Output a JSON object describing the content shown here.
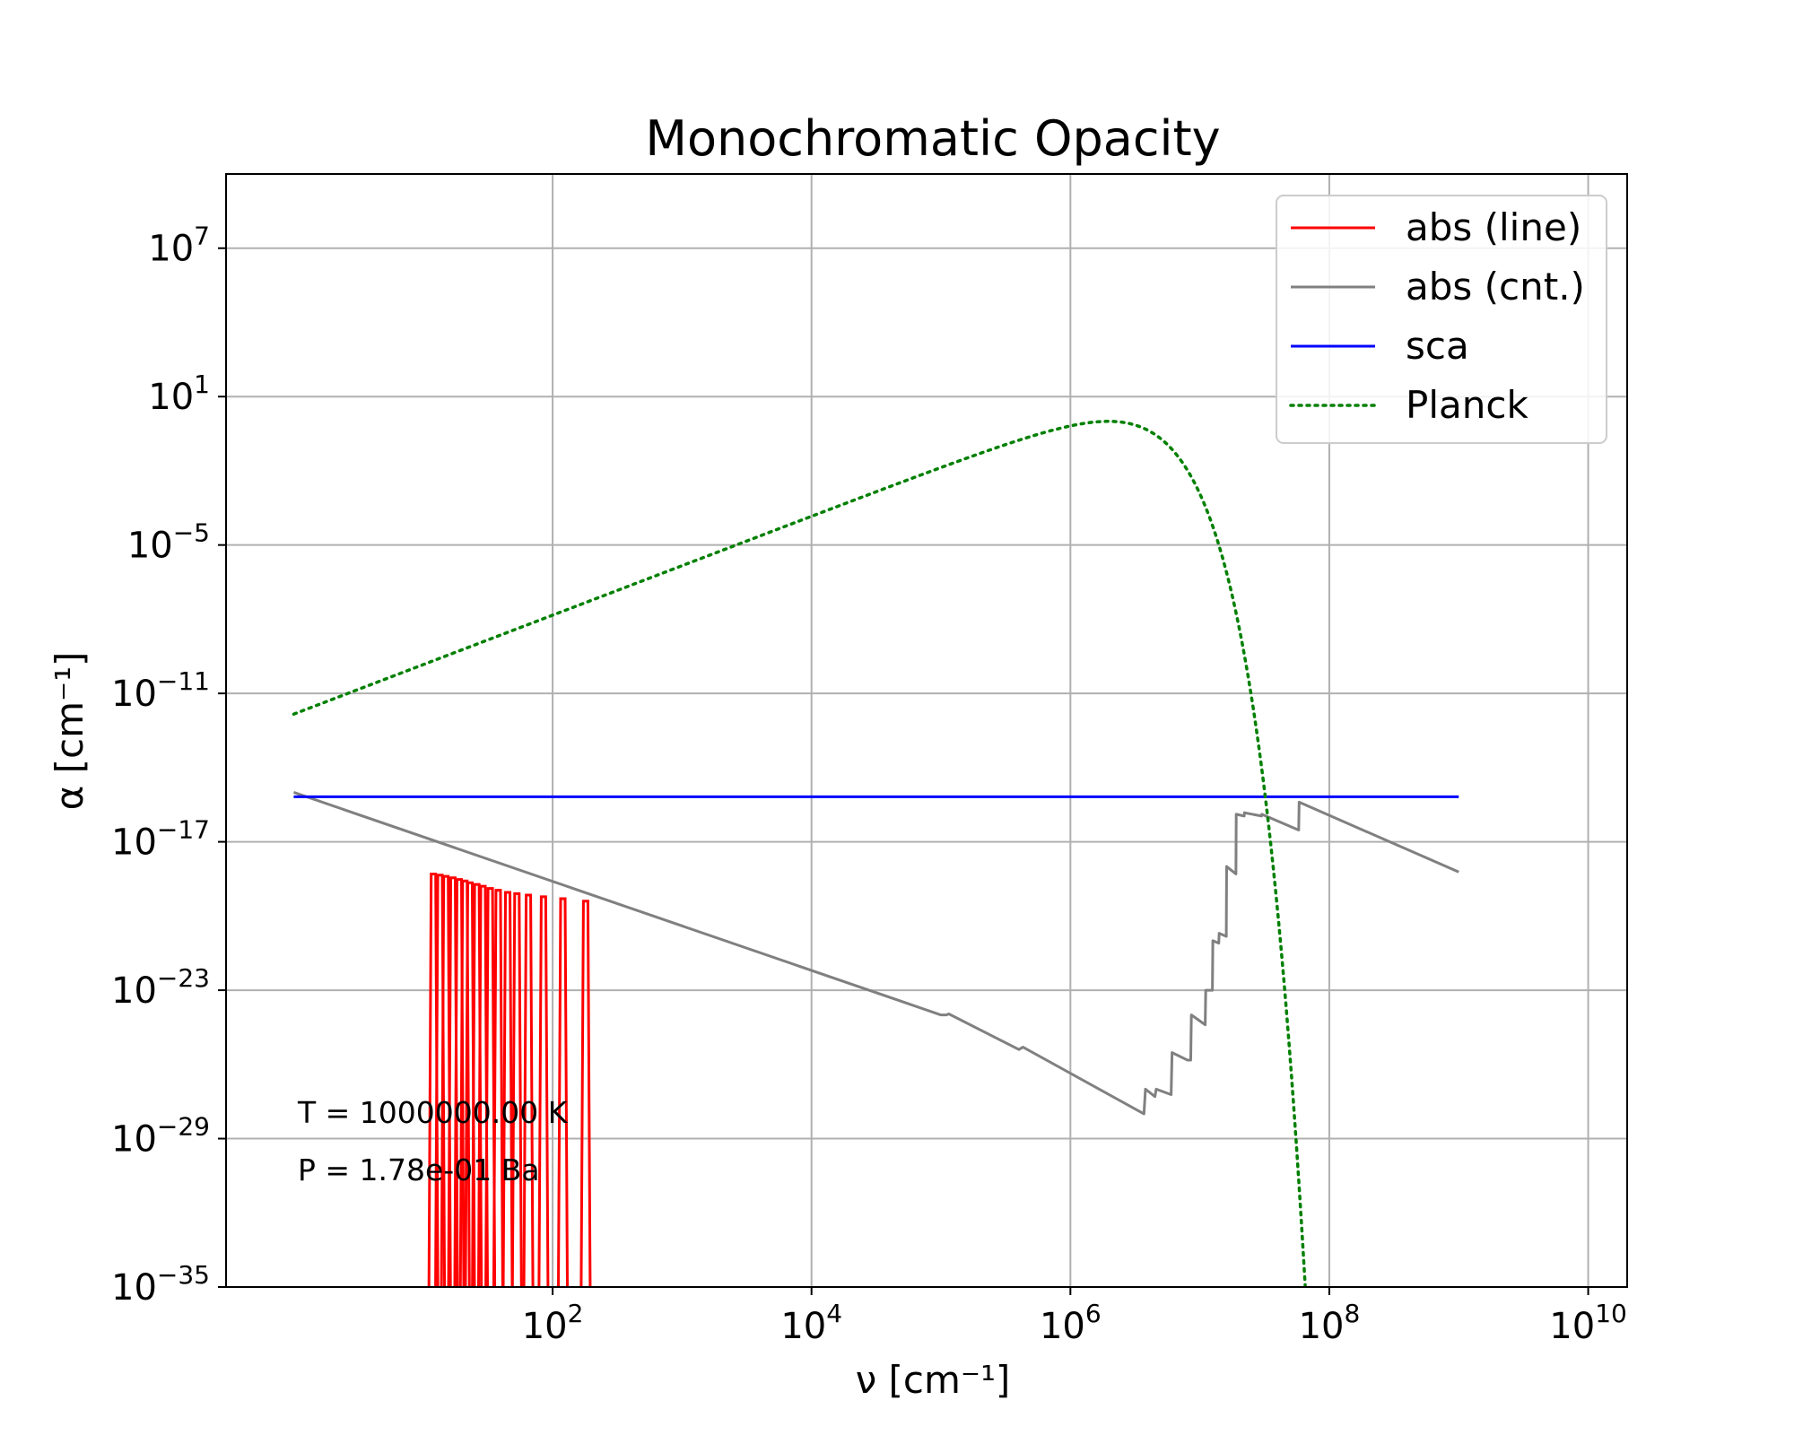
{
  "chart_data": {
    "type": "line",
    "title": "Monochromatic Opacity",
    "xlabel": "ν [cm⁻¹]",
    "ylabel": "α [cm⁻¹]",
    "xscale": "log",
    "yscale": "log",
    "xlim": [
      0.3,
      20000000000.0
    ],
    "ylim": [
      1e-35,
      10000000000.0
    ],
    "x_ticks": [
      {
        "value": 100,
        "label": "10",
        "exp": "2"
      },
      {
        "value": 10000,
        "label": "10",
        "exp": "4"
      },
      {
        "value": 1000000,
        "label": "10",
        "exp": "6"
      },
      {
        "value": 100000000,
        "label": "10",
        "exp": "8"
      },
      {
        "value": 10000000000,
        "label": "10",
        "exp": "10"
      }
    ],
    "y_ticks": [
      {
        "value": 1e-35,
        "label": "10",
        "exp": "−35"
      },
      {
        "value": 1e-29,
        "label": "10",
        "exp": "−29"
      },
      {
        "value": 1e-23,
        "label": "10",
        "exp": "−23"
      },
      {
        "value": 1e-17,
        "label": "10",
        "exp": "−17"
      },
      {
        "value": 1e-11,
        "label": "10",
        "exp": "−11"
      },
      {
        "value": 1e-05,
        "label": "10",
        "exp": "−5"
      },
      {
        "value": 10,
        "label": "10",
        "exp": "1"
      },
      {
        "value": 10000000.0,
        "label": "10",
        "exp": "7"
      }
    ],
    "grid": true,
    "legend_position": "top-right",
    "annotations": [
      "T = 1000000.00 K",
      "P = 1.78e-01 Ba"
    ],
    "series": [
      {
        "name": "abs (line)",
        "color": "#ff0000",
        "style": "solid",
        "kind": "spikes",
        "baseline": 1e-35,
        "points": [
          [
            12,
            5e-19
          ],
          [
            13.5,
            4.5e-19
          ],
          [
            15,
            4e-19
          ],
          [
            17,
            3.5e-19
          ],
          [
            19,
            3e-19
          ],
          [
            21,
            2.6e-19
          ],
          [
            23,
            2.2e-19
          ],
          [
            26,
            1.9e-19
          ],
          [
            29,
            1.6e-19
          ],
          [
            33,
            1.3e-19
          ],
          [
            38,
            1.1e-19
          ],
          [
            45,
            9e-20
          ],
          [
            53,
            8e-20
          ],
          [
            65,
            7e-20
          ],
          [
            85,
            6e-20
          ],
          [
            120,
            5e-20
          ],
          [
            180,
            4e-20
          ]
        ]
      },
      {
        "name": "abs (cnt.)",
        "color": "#808080",
        "style": "solid",
        "points": [
          [
            1,
            1e-15
          ],
          [
            100000.0,
            1e-24
          ],
          [
            110000.0,
            1e-24
          ],
          [
            115000.0,
            1.1e-24
          ],
          [
            400000.0,
            4e-26
          ],
          [
            430000.0,
            5e-26
          ],
          [
            3700000.0,
            1e-28
          ],
          [
            3800000.0,
            1e-27
          ],
          [
            4500000.0,
            5e-28
          ],
          [
            4600000.0,
            1e-27
          ],
          [
            6000000.0,
            6e-28
          ],
          [
            6100000.0,
            3e-26
          ],
          [
            8000000.0,
            1.5e-26
          ],
          [
            8500000.0,
            1.5e-26
          ],
          [
            8600000.0,
            1e-24
          ],
          [
            11000000.0,
            4e-25
          ],
          [
            11100000.0,
            1e-23
          ],
          [
            12500000.0,
            1e-23
          ],
          [
            12600000.0,
            1e-21
          ],
          [
            14000000.0,
            8e-22
          ],
          [
            14100000.0,
            2e-21
          ],
          [
            16000000.0,
            1.5e-21
          ],
          [
            16100000.0,
            1e-18
          ],
          [
            19000000.0,
            5e-19
          ],
          [
            19100000.0,
            1.3e-16
          ],
          [
            22000000.0,
            1.1e-16
          ],
          [
            22100000.0,
            1.5e-16
          ],
          [
            30000000.0,
            1.1e-16
          ],
          [
            30100000.0,
            1.3e-16
          ],
          [
            58000000.0,
            3e-17
          ],
          [
            58500000.0,
            4e-16
          ],
          [
            1000000000.0,
            6e-19
          ]
        ]
      },
      {
        "name": "sca",
        "color": "#0000ff",
        "style": "solid",
        "points": [
          [
            1,
            6.65e-16
          ],
          [
            1000000000.0,
            6.65e-16
          ]
        ]
      },
      {
        "name": "Planck",
        "color": "#008000",
        "style": "dotted",
        "curve": "planck",
        "x_range": [
          1,
          70000000.0
        ],
        "peak_x": 1960000.0,
        "peak_y": 1
      }
    ]
  }
}
